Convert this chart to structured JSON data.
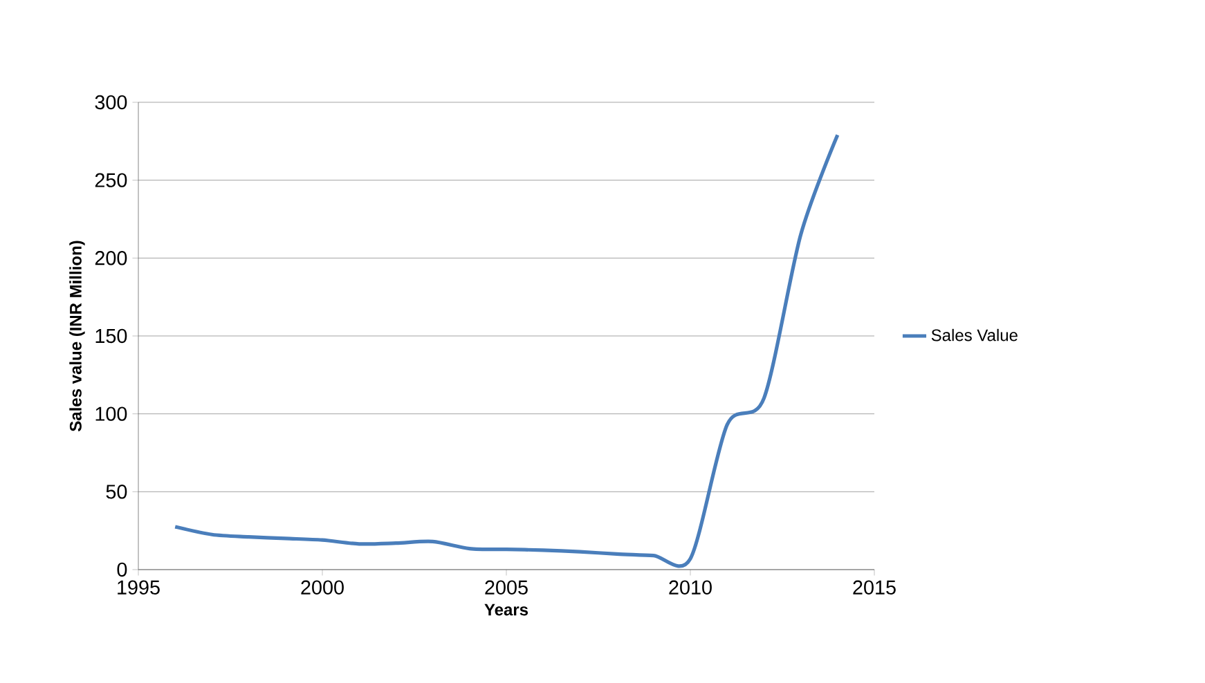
{
  "chart_data": {
    "type": "line",
    "xlabel": "Years",
    "ylabel": "Sales value (INR Million)",
    "x": [
      1996,
      1997,
      1998,
      1999,
      2000,
      2001,
      2002,
      2003,
      2004,
      2005,
      2006,
      2007,
      2008,
      2009,
      2010,
      2011,
      2012,
      2013,
      2014
    ],
    "series": [
      {
        "name": "Sales Value",
        "color": "#4a7ebb",
        "values": [
          27.5,
          22.5,
          21,
          20,
          19,
          16.5,
          17,
          18,
          13.5,
          13,
          12.5,
          11.5,
          10,
          9,
          7,
          93,
          110,
          215,
          279
        ]
      }
    ],
    "xlim": [
      1995,
      2015
    ],
    "xticks": [
      1995,
      2000,
      2005,
      2010,
      2015
    ],
    "ylim": [
      0,
      300
    ],
    "yticks": [
      0,
      50,
      100,
      150,
      200,
      250,
      300
    ],
    "grid": "y",
    "legend": "right",
    "marker": "none",
    "line_style": "solid"
  }
}
